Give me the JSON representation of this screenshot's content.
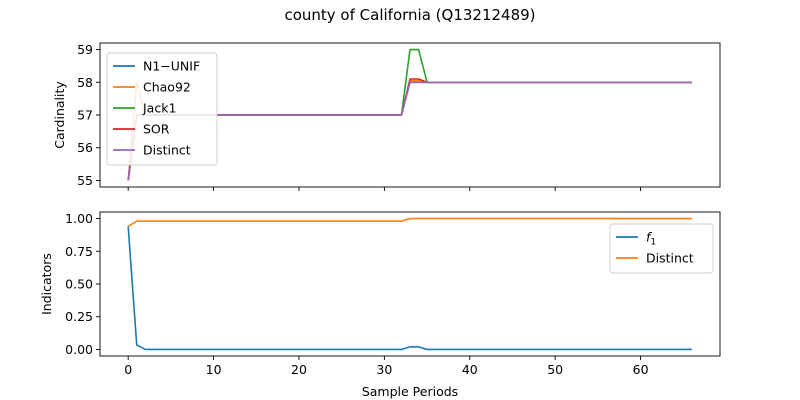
{
  "title": "county of California (Q13212489)",
  "chart_data": [
    {
      "type": "line",
      "ylabel": "Cardinality",
      "xlim": [
        -3.3,
        69.3
      ],
      "ylim": [
        54.8,
        59.2
      ],
      "yticks": [
        55,
        56,
        57,
        58,
        59
      ],
      "show_xticklabels": false,
      "legend_position": "upper-left",
      "series": [
        {
          "name": "N1−UNIF",
          "color": "#1f77b4",
          "points": [
            [
              0,
              55
            ],
            [
              1,
              57
            ],
            [
              2,
              57
            ],
            [
              32,
              57
            ],
            [
              33,
              58
            ],
            [
              66,
              58
            ]
          ]
        },
        {
          "name": "Chao92",
          "color": "#ff7f0e",
          "points": [
            [
              0,
              55
            ],
            [
              1,
              58
            ],
            [
              2,
              57
            ],
            [
              32,
              57
            ],
            [
              33,
              58.05
            ],
            [
              34,
              58.05
            ],
            [
              35,
              58
            ],
            [
              66,
              58
            ]
          ]
        },
        {
          "name": "Jack1",
          "color": "#2ca02c",
          "points": [
            [
              0,
              55
            ],
            [
              1,
              57
            ],
            [
              2,
              57
            ],
            [
              32,
              57
            ],
            [
              33,
              59
            ],
            [
              34,
              59
            ],
            [
              35,
              58
            ],
            [
              66,
              58
            ]
          ]
        },
        {
          "name": "SOR",
          "color": "#d62728",
          "points": [
            [
              0,
              55
            ],
            [
              1,
              57
            ],
            [
              2,
              57
            ],
            [
              32,
              57
            ],
            [
              33,
              58.1
            ],
            [
              34,
              58.1
            ],
            [
              35,
              58
            ],
            [
              66,
              58
            ]
          ]
        },
        {
          "name": "Distinct",
          "color": "#9467bd",
          "points": [
            [
              0,
              55
            ],
            [
              1,
              57
            ],
            [
              2,
              57
            ],
            [
              32,
              57
            ],
            [
              33,
              58
            ],
            [
              66,
              58
            ]
          ]
        }
      ]
    },
    {
      "type": "line",
      "ylabel": "Indicators",
      "xlabel": "Sample Periods",
      "xlim": [
        -3.3,
        69.3
      ],
      "ylim": [
        -0.05,
        1.05
      ],
      "xticks": [
        0,
        10,
        20,
        30,
        40,
        50,
        60
      ],
      "yticks": [
        0.0,
        0.25,
        0.5,
        0.75,
        1.0
      ],
      "ytick_labels": [
        "0.00",
        "0.25",
        "0.50",
        "0.75",
        "1.00"
      ],
      "show_xticklabels": true,
      "legend_position": "upper-right",
      "series": [
        {
          "name": "f1",
          "color": "#1f77b4",
          "points": [
            [
              0,
              0.94
            ],
            [
              1,
              0.035
            ],
            [
              2,
              0
            ],
            [
              32,
              0
            ],
            [
              33,
              0.02
            ],
            [
              34,
              0.02
            ],
            [
              35,
              0
            ],
            [
              66,
              0
            ]
          ]
        },
        {
          "name": "Distinct",
          "color": "#ff7f0e",
          "points": [
            [
              0,
              0.94
            ],
            [
              1,
              0.98
            ],
            [
              2,
              0.98
            ],
            [
              32,
              0.98
            ],
            [
              33,
              1
            ],
            [
              66,
              1
            ]
          ]
        }
      ]
    }
  ]
}
